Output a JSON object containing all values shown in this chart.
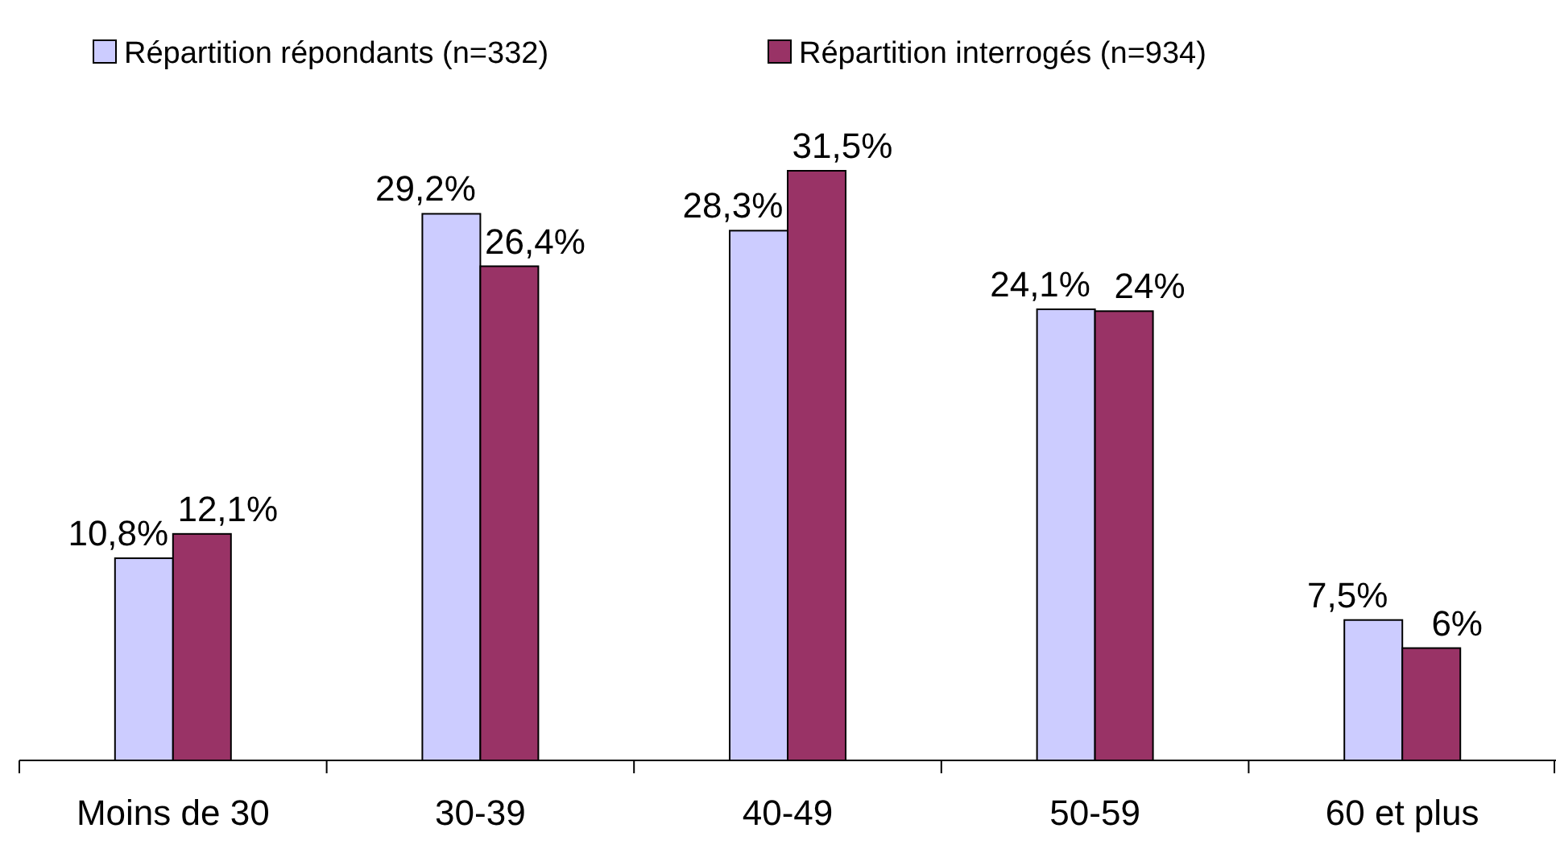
{
  "chart_data": {
    "type": "bar",
    "categories": [
      "Moins de 30",
      "30-39",
      "40-49",
      "50-59",
      "60 et plus"
    ],
    "series": [
      {
        "name": "Répartition répondants (n=332)",
        "color": "#ccccff",
        "values": [
          10.8,
          29.2,
          28.3,
          24.1,
          7.5
        ],
        "value_labels": [
          "10,8%",
          "29,2%",
          "28,3%",
          "24,1%",
          "7,5%"
        ]
      },
      {
        "name": "Répartition interrogés (n=934)",
        "color": "#993366",
        "values": [
          12.1,
          26.4,
          31.5,
          24,
          6
        ],
        "value_labels": [
          "12,1%",
          "26,4%",
          "31,5%",
          "24%",
          "6%"
        ]
      }
    ],
    "legend": "top"
  }
}
